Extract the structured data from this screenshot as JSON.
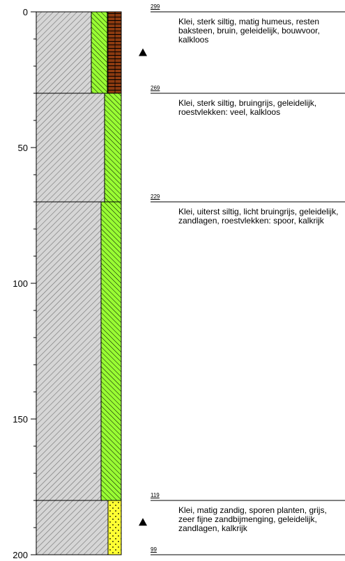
{
  "axis": {
    "min_cm": 0,
    "max_cm": 200,
    "tick_labels": [
      "0",
      "50",
      "100",
      "150",
      "200"
    ],
    "tick_values": [
      0,
      50,
      100,
      150,
      200
    ]
  },
  "colors": {
    "clay_hatch": "#9a9a9a",
    "clay_bg": "#d6d6d6",
    "silt_green": "#99ff33",
    "brown_humus": "#8b3a10",
    "sand_yellow": "#ffff33"
  },
  "layers": [
    {
      "top": 0,
      "bottom": 30,
      "code": "299",
      "description": "Klei, sterk siltig, matig humeus, resten baksteen, bruin, geleidelijk, bouwvoor, kalkloos",
      "columns": [
        "clay",
        "silt",
        "humus"
      ]
    },
    {
      "top": 30,
      "bottom": 70,
      "code": "269",
      "description": "Klei, sterk siltig, bruingrijs, geleidelijk, roestvlekken: veel, kalkloos",
      "columns": [
        "clay",
        "silt"
      ]
    },
    {
      "top": 70,
      "bottom": 180,
      "code": "229",
      "description": "Klei, uiterst siltig, licht bruingrijs, geleidelijk, zandlagen, roestvlekken: spoor, kalkrijk",
      "columns": [
        "clay",
        "silt"
      ]
    },
    {
      "top": 180,
      "bottom": 200,
      "code": "119",
      "description": "Klei, matig zandig, sporen planten, grijs, zeer fijne zandbijmenging, geleidelijk, zandlagen, kalkrijk",
      "columns": [
        "clay",
        "sand"
      ]
    }
  ],
  "bottom_code": "99",
  "markers": [
    {
      "depth": 15,
      "icon": "triangle-marker-icon"
    },
    {
      "depth": 188,
      "icon": "triangle-marker-icon"
    }
  ]
}
